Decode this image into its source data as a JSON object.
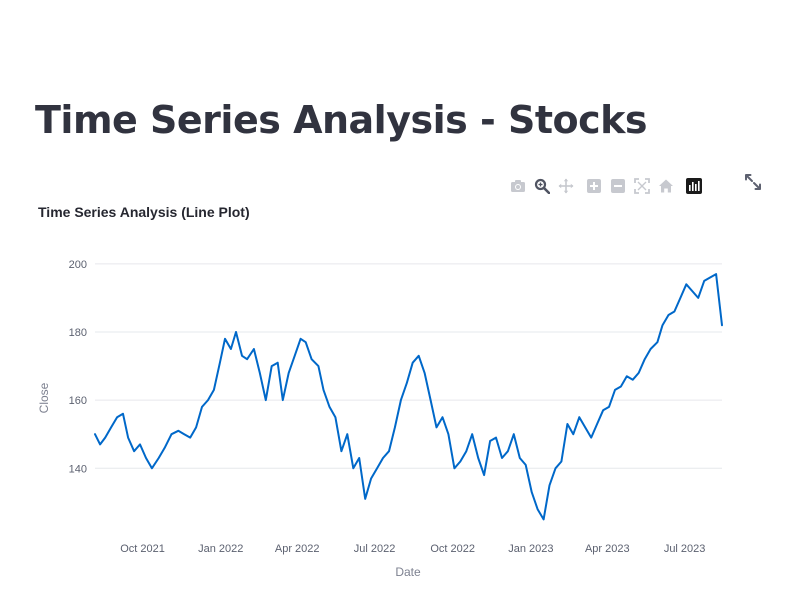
{
  "page": {
    "title": "Time Series Analysis - Stocks"
  },
  "modebar": {
    "buttons": [
      {
        "name": "camera-icon",
        "label": "Download plot as a png"
      },
      {
        "name": "zoom-icon",
        "label": "Zoom"
      },
      {
        "name": "pan-icon",
        "label": "Pan"
      },
      {
        "name": "zoom-in-icon",
        "label": "Zoom in"
      },
      {
        "name": "zoom-out-icon",
        "label": "Zoom out"
      },
      {
        "name": "autoscale-icon",
        "label": "Autoscale"
      },
      {
        "name": "home-icon",
        "label": "Reset axes"
      },
      {
        "name": "plotly-logo-icon",
        "label": "Produced with Plotly"
      }
    ]
  },
  "chart_data": {
    "type": "line",
    "title": "Time Series Analysis (Line Plot)",
    "xlabel": "Date",
    "ylabel": "Close",
    "line_color": "#0068c9",
    "grid": true,
    "xlim": [
      "2021-08-06",
      "2023-08-14"
    ],
    "ylim": [
      121,
      207
    ],
    "xticks": [
      {
        "date": "2021-10-01",
        "label": "Oct 2021"
      },
      {
        "date": "2022-01-01",
        "label": "Jan 2022"
      },
      {
        "date": "2022-04-01",
        "label": "Apr 2022"
      },
      {
        "date": "2022-07-01",
        "label": "Jul 2022"
      },
      {
        "date": "2022-10-01",
        "label": "Oct 2022"
      },
      {
        "date": "2023-01-01",
        "label": "Jan 2023"
      },
      {
        "date": "2023-04-01",
        "label": "Apr 2023"
      },
      {
        "date": "2023-07-01",
        "label": "Jul 2023"
      }
    ],
    "yticks": [
      140,
      160,
      180,
      200
    ],
    "series": [
      {
        "x": [
          "2021-08-06",
          "2021-08-12",
          "2021-08-18",
          "2021-08-25",
          "2021-09-01",
          "2021-09-08",
          "2021-09-14",
          "2021-09-21",
          "2021-09-28",
          "2021-10-05",
          "2021-10-12",
          "2021-10-20",
          "2021-10-27",
          "2021-11-04",
          "2021-11-12",
          "2021-11-19",
          "2021-11-26",
          "2021-12-03",
          "2021-12-10",
          "2021-12-17",
          "2021-12-24",
          "2021-12-31",
          "2022-01-06",
          "2022-01-13",
          "2022-01-19",
          "2022-01-26",
          "2022-02-01",
          "2022-02-09",
          "2022-02-16",
          "2022-02-23",
          "2022-03-02",
          "2022-03-09",
          "2022-03-15",
          "2022-03-22",
          "2022-03-29",
          "2022-04-05",
          "2022-04-11",
          "2022-04-18",
          "2022-04-26",
          "2022-05-02",
          "2022-05-09",
          "2022-05-16",
          "2022-05-23",
          "2022-05-30",
          "2022-06-06",
          "2022-06-13",
          "2022-06-20",
          "2022-06-27",
          "2022-07-04",
          "2022-07-11",
          "2022-07-18",
          "2022-07-25",
          "2022-08-01",
          "2022-08-08",
          "2022-08-15",
          "2022-08-22",
          "2022-08-29",
          "2022-09-05",
          "2022-09-12",
          "2022-09-19",
          "2022-09-26",
          "2022-10-03",
          "2022-10-10",
          "2022-10-17",
          "2022-10-24",
          "2022-10-31",
          "2022-11-07",
          "2022-11-14",
          "2022-11-21",
          "2022-11-28",
          "2022-12-05",
          "2022-12-12",
          "2022-12-19",
          "2022-12-26",
          "2023-01-02",
          "2023-01-09",
          "2023-01-16",
          "2023-01-23",
          "2023-01-30",
          "2023-02-06",
          "2023-02-13",
          "2023-02-20",
          "2023-02-27",
          "2023-03-06",
          "2023-03-13",
          "2023-03-20",
          "2023-03-27",
          "2023-04-03",
          "2023-04-10",
          "2023-04-17",
          "2023-04-24",
          "2023-05-01",
          "2023-05-08",
          "2023-05-15",
          "2023-05-22",
          "2023-05-30",
          "2023-06-05",
          "2023-06-12",
          "2023-06-19",
          "2023-06-26",
          "2023-07-03",
          "2023-07-10",
          "2023-07-17",
          "2023-07-24",
          "2023-07-31",
          "2023-08-07",
          "2023-08-14"
        ],
        "y": [
          150,
          147,
          149,
          152,
          155,
          156,
          149,
          145,
          147,
          143,
          140,
          143,
          146,
          150,
          151,
          150,
          149,
          152,
          158,
          160,
          163,
          171,
          178,
          175,
          180,
          173,
          172,
          175,
          168,
          160,
          170,
          171,
          160,
          168,
          173,
          178,
          177,
          172,
          170,
          163,
          158,
          155,
          145,
          150,
          140,
          143,
          131,
          137,
          140,
          143,
          145,
          152,
          160,
          165,
          171,
          173,
          168,
          160,
          152,
          155,
          150,
          140,
          142,
          145,
          150,
          143,
          138,
          148,
          149,
          143,
          145,
          150,
          143,
          141,
          133,
          128,
          125,
          135,
          140,
          142,
          153,
          150,
          155,
          152,
          149,
          153,
          157,
          158,
          163,
          164,
          167,
          166,
          168,
          172,
          175,
          177,
          182,
          185,
          186,
          190,
          194,
          192,
          190,
          195,
          196,
          197,
          182
        ]
      }
    ]
  }
}
